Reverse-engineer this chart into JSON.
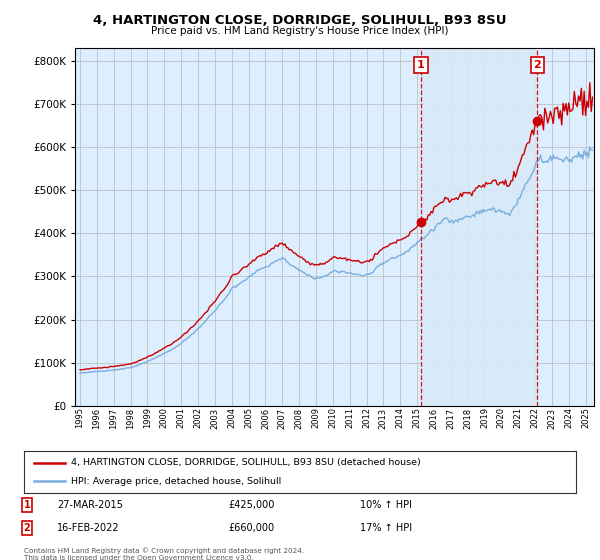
{
  "title": "4, HARTINGTON CLOSE, DORRIDGE, SOLIHULL, B93 8SU",
  "subtitle": "Price paid vs. HM Land Registry's House Price Index (HPI)",
  "legend_line1": "4, HARTINGTON CLOSE, DORRIDGE, SOLIHULL, B93 8SU (detached house)",
  "legend_line2": "HPI: Average price, detached house, Solihull",
  "annotation1_label": "1",
  "annotation1_date": "27-MAR-2015",
  "annotation1_price": "£425,000",
  "annotation1_hpi": "10% ↑ HPI",
  "annotation1_year": 2015.23,
  "annotation1_value": 425000,
  "annotation2_label": "2",
  "annotation2_date": "16-FEB-2022",
  "annotation2_price": "£660,000",
  "annotation2_hpi": "17% ↑ HPI",
  "annotation2_year": 2022.13,
  "annotation2_value": 660000,
  "footer": "Contains HM Land Registry data © Crown copyright and database right 2024.\nThis data is licensed under the Open Government Licence v3.0.",
  "red_color": "#cc0000",
  "blue_color": "#7aaedc",
  "shade_color": "#d8eaf7",
  "background_color": "#ddeeff",
  "ylim": [
    0,
    830000
  ],
  "yticks": [
    0,
    100000,
    200000,
    300000,
    400000,
    500000,
    600000,
    700000,
    800000
  ],
  "xlim_start": 1994.7,
  "xlim_end": 2025.5
}
